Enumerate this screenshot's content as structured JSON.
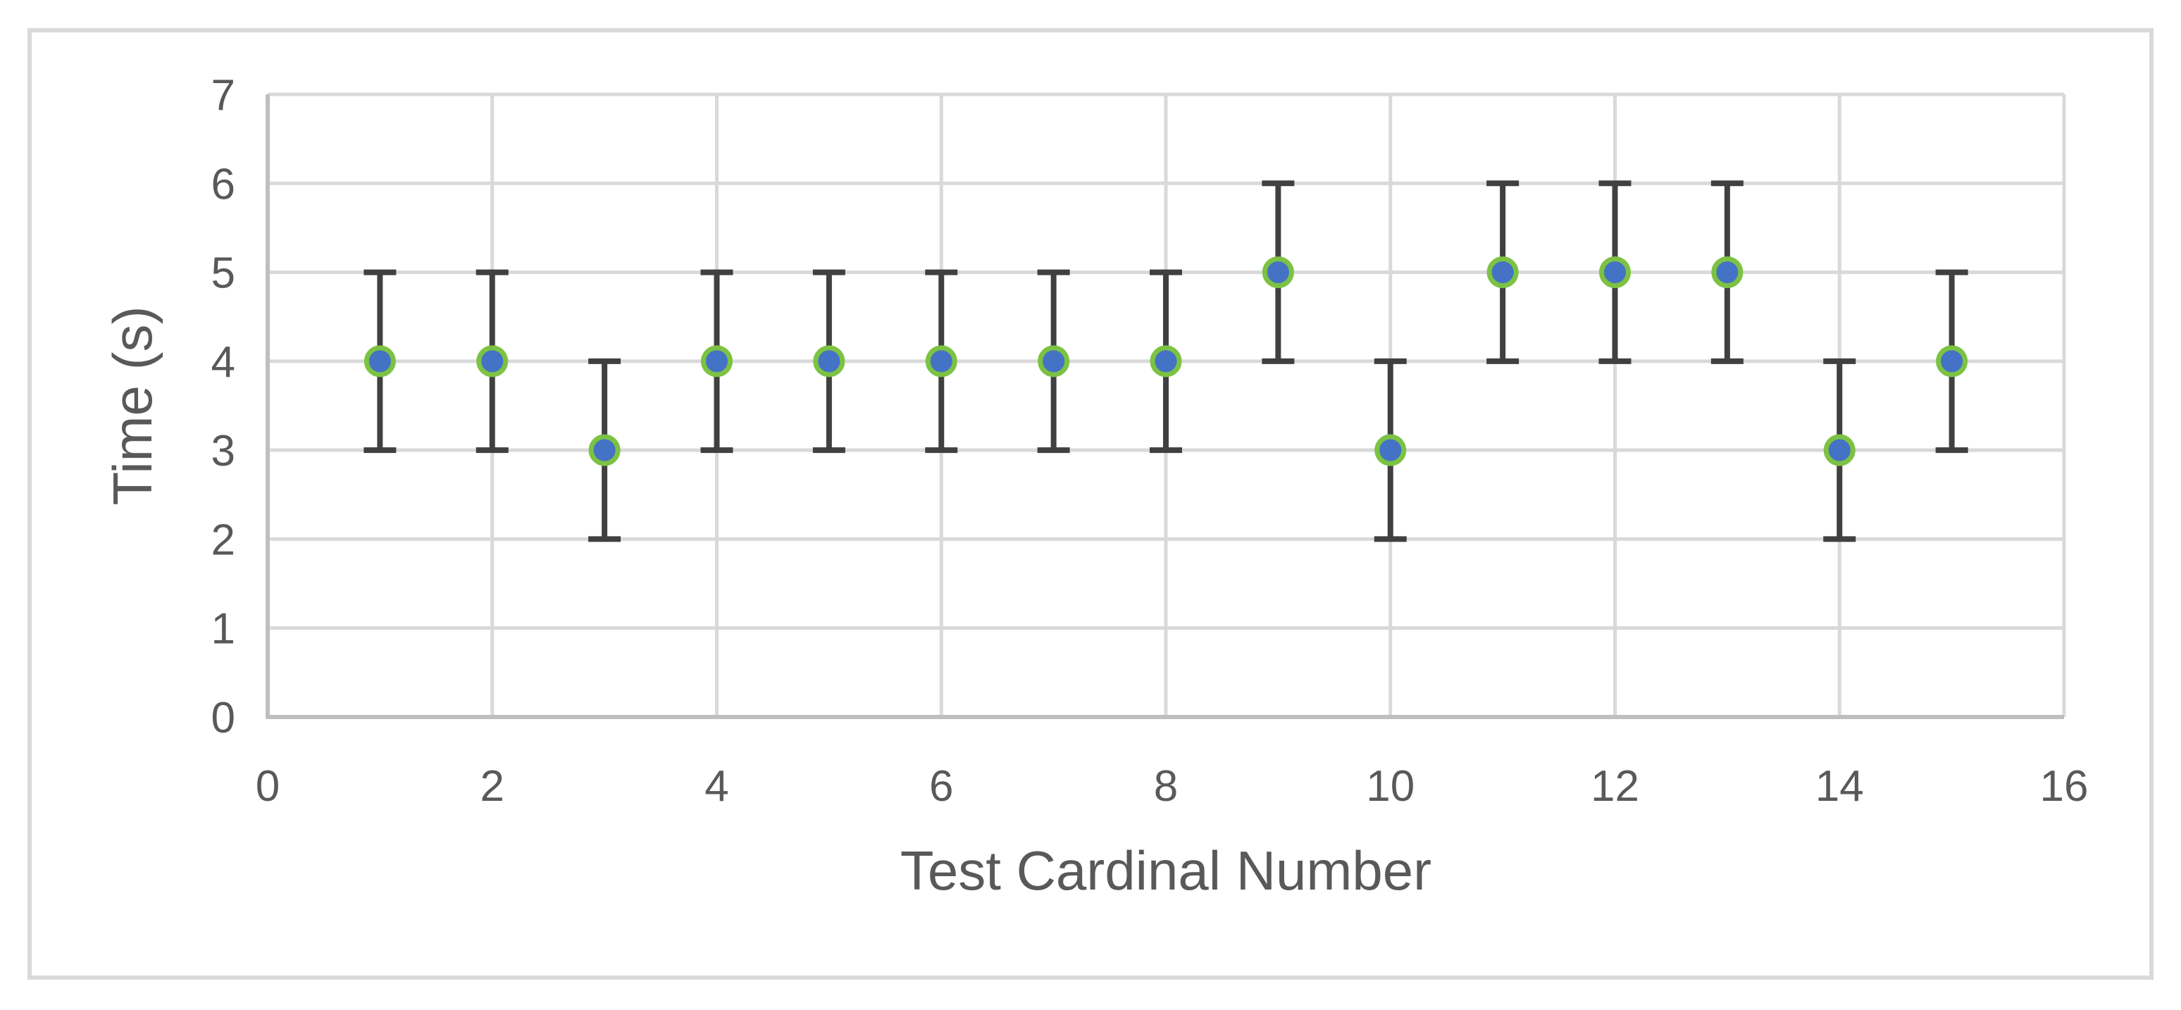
{
  "chart_data": {
    "type": "scatter",
    "title": "",
    "xlabel": "Test Cardinal Number",
    "ylabel": "Time (s)",
    "x": [
      1,
      2,
      3,
      4,
      5,
      6,
      7,
      8,
      9,
      10,
      11,
      12,
      13,
      14,
      15
    ],
    "y": [
      4,
      4,
      3,
      4,
      4,
      4,
      4,
      4,
      5,
      3,
      5,
      5,
      5,
      3,
      4
    ],
    "y_error": 1,
    "xlim": [
      0,
      16
    ],
    "ylim": [
      0,
      7
    ],
    "x_ticks": [
      0,
      2,
      4,
      6,
      8,
      10,
      12,
      14,
      16
    ],
    "y_ticks": [
      0,
      1,
      2,
      3,
      4,
      5,
      6,
      7
    ],
    "grid": true,
    "legend": false,
    "error_bar_caps": true,
    "colors": {
      "marker_fill": "#4472C4",
      "marker_border": "#7CC243",
      "error_bar": "#404040",
      "gridline": "#D9D9D9",
      "axis_line": "#BFBFBF",
      "tick_text": "#595959",
      "title_text": "#595959",
      "chart_border": "#D9D9D9",
      "background": "#FFFFFF"
    }
  }
}
